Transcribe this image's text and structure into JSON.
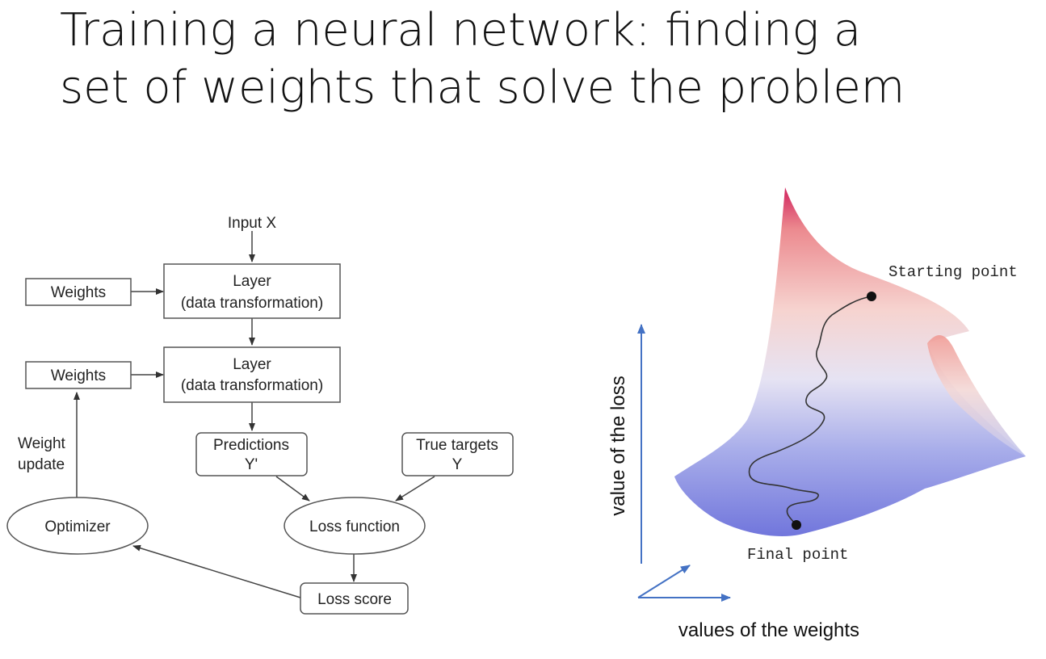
{
  "slide": {
    "title_line1": "Training a neural network: finding a",
    "title_line2": "set of weights that solve the problem"
  },
  "flow_diagram": {
    "input_label": "Input X",
    "layer1": {
      "line1": "Layer",
      "line2": "(data transformation)"
    },
    "layer2": {
      "line1": "Layer",
      "line2": "(data transformation)"
    },
    "weights1": "Weights",
    "weights2": "Weights",
    "weight_update": {
      "line1": "Weight",
      "line2": "update"
    },
    "predictions": {
      "line1": "Predictions",
      "line2": "Y'"
    },
    "true_targets": {
      "line1": "True targets",
      "line2": "Y"
    },
    "optimizer": "Optimizer",
    "loss_function": "Loss function",
    "loss_score": "Loss score"
  },
  "loss_surface": {
    "starting_point": "Starting point",
    "final_point": "Final point",
    "y_axis_label": "value of the loss",
    "x_axis_label": "values of the weights",
    "colors": {
      "high": "#d6336c",
      "mid": "#f2c6c6",
      "low": "#7b7fe0",
      "axis": "#4472c4"
    }
  }
}
